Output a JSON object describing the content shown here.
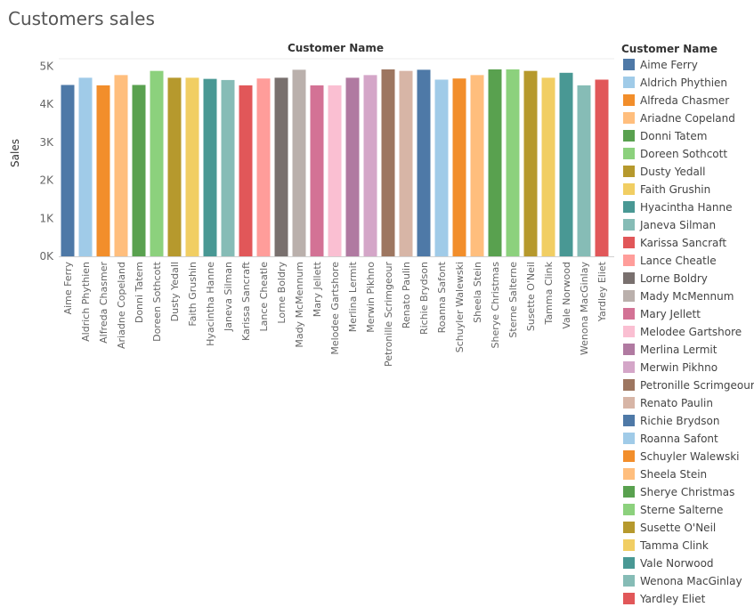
{
  "page_title": "Customers sales",
  "chart_data": {
    "type": "bar",
    "title": "Customers sales",
    "column_header": "Customer Name",
    "ylabel": "Sales",
    "xlabel": "",
    "ylim": [
      0,
      5200
    ],
    "y_ticks": [
      {
        "value": 0,
        "label": "0K"
      },
      {
        "value": 1000,
        "label": "1K"
      },
      {
        "value": 2000,
        "label": "2K"
      },
      {
        "value": 3000,
        "label": "3K"
      },
      {
        "value": 4000,
        "label": "4K"
      },
      {
        "value": 5000,
        "label": "5K"
      }
    ],
    "grid": false,
    "legend_title": "Customer Name",
    "legend_position": "right",
    "categories": [
      "Aime Ferry",
      "Aldrich Phythien",
      "Alfreda Chasmer",
      "Ariadne Copeland",
      "Donni Tatem",
      "Doreen Sothcott",
      "Dusty Yedall",
      "Faith Grushin",
      "Hyacintha Hanne",
      "Janeva Silman",
      "Karissa Sancraft",
      "Lance Cheatle",
      "Lorne Boldry",
      "Mady McMennum",
      "Mary Jellett",
      "Melodee Gartshore",
      "Merlina Lermit",
      "Merwin Pikhno",
      "Petronille Scrimgeour",
      "Renato Paulin",
      "Richie Brydson",
      "Roanna Safont",
      "Schuyler Walewski",
      "Sheela Stein",
      "Sherye Christmas",
      "Sterne Salterne",
      "Susette O'Neil",
      "Tamma Clink",
      "Vale Norwood",
      "Wenona MacGinlay",
      "Yardley Eliet"
    ],
    "values": [
      4510,
      4700,
      4500,
      4770,
      4510,
      4880,
      4700,
      4700,
      4670,
      4640,
      4500,
      4680,
      4700,
      4910,
      4500,
      4500,
      4700,
      4770,
      4920,
      4880,
      4910,
      4650,
      4680,
      4770,
      4920,
      4920,
      4880,
      4700,
      4830,
      4500,
      4650
    ],
    "colors": [
      "#4e79a7",
      "#a0cbe8",
      "#f28e2b",
      "#ffbe7d",
      "#59a14f",
      "#8cd17d",
      "#b6992d",
      "#f1ce63",
      "#499894",
      "#86bcb6",
      "#e15759",
      "#ff9d9a",
      "#79706e",
      "#bab0ac",
      "#d37295",
      "#fabfd2",
      "#b07aa1",
      "#d4a6c8",
      "#9d7660",
      "#d7b5a6",
      "#4e79a7",
      "#a0cbe8",
      "#f28e2b",
      "#ffbe7d",
      "#59a14f",
      "#8cd17d",
      "#b6992d",
      "#f1ce63",
      "#499894",
      "#86bcb6",
      "#e15759"
    ]
  }
}
